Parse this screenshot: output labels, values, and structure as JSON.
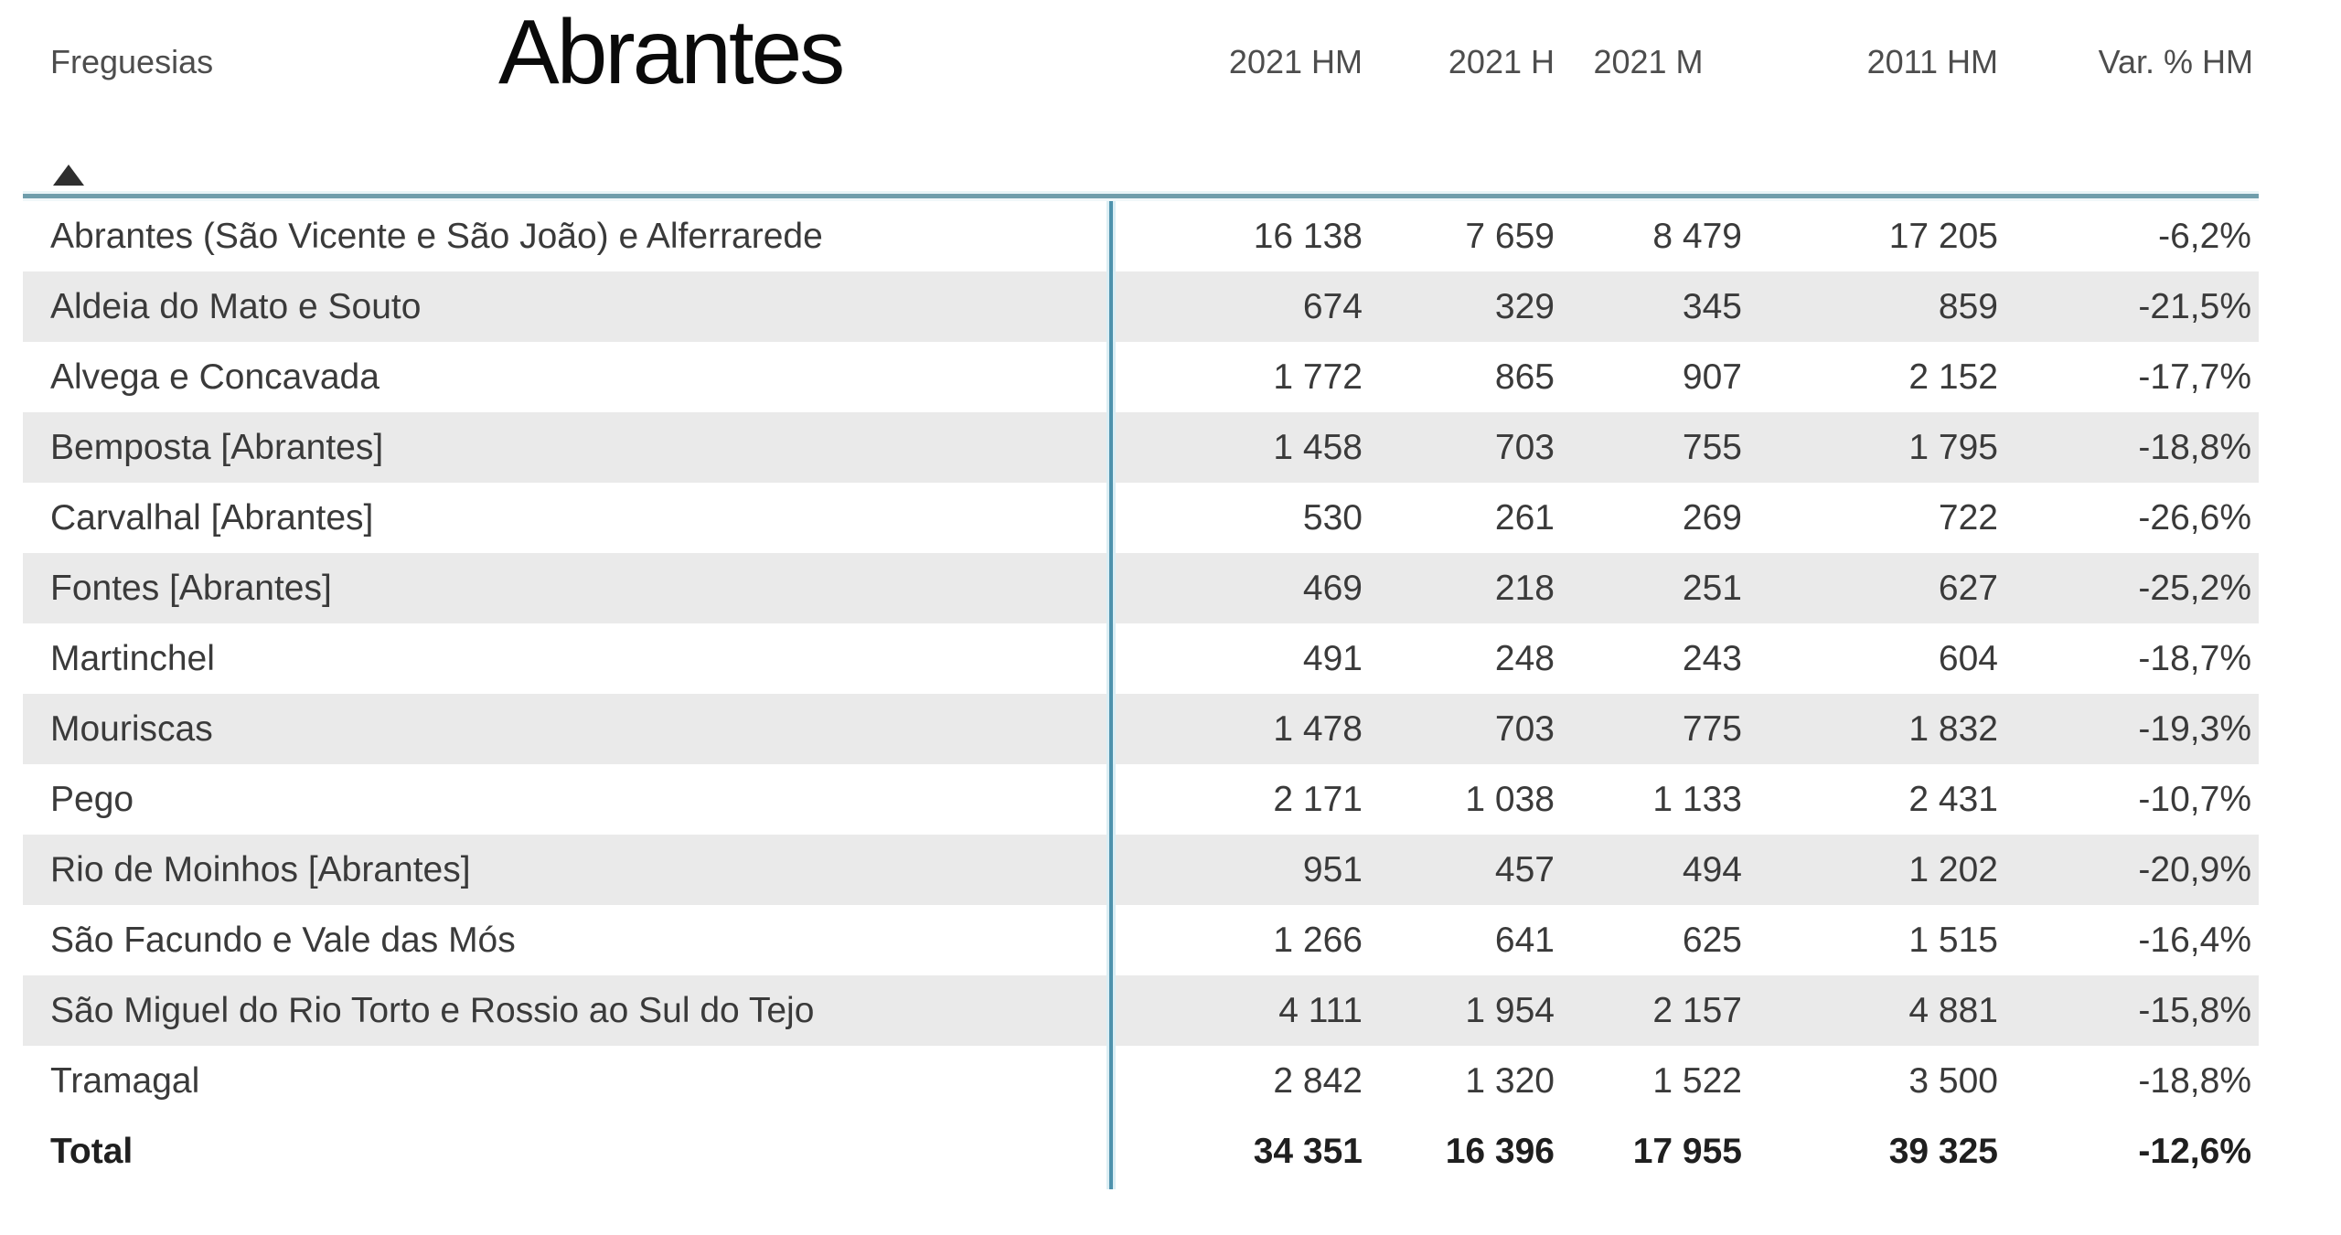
{
  "chart_data": {
    "type": "table",
    "title": "Abrantes",
    "row_header": "Freguesias",
    "columns": [
      "2021 HM",
      "2021 H",
      "2021 M",
      "2011 HM",
      "Var. % HM"
    ],
    "sort": {
      "column": "Freguesias",
      "direction": "ascending"
    },
    "rows": [
      {
        "name": "Abrantes (São Vicente e São João) e Alferrarede",
        "values": [
          "16 138",
          "7 659",
          "8 479",
          "17 205",
          "-6,2%"
        ]
      },
      {
        "name": "Aldeia do Mato e Souto",
        "values": [
          "674",
          "329",
          "345",
          "859",
          "-21,5%"
        ]
      },
      {
        "name": "Alvega e Concavada",
        "values": [
          "1 772",
          "865",
          "907",
          "2 152",
          "-17,7%"
        ]
      },
      {
        "name": "Bemposta [Abrantes]",
        "values": [
          "1 458",
          "703",
          "755",
          "1 795",
          "-18,8%"
        ]
      },
      {
        "name": "Carvalhal [Abrantes]",
        "values": [
          "530",
          "261",
          "269",
          "722",
          "-26,6%"
        ]
      },
      {
        "name": "Fontes [Abrantes]",
        "values": [
          "469",
          "218",
          "251",
          "627",
          "-25,2%"
        ]
      },
      {
        "name": "Martinchel",
        "values": [
          "491",
          "248",
          "243",
          "604",
          "-18,7%"
        ]
      },
      {
        "name": "Mouriscas",
        "values": [
          "1 478",
          "703",
          "775",
          "1 832",
          "-19,3%"
        ]
      },
      {
        "name": "Pego",
        "values": [
          "2 171",
          "1 038",
          "1 133",
          "2 431",
          "-10,7%"
        ]
      },
      {
        "name": "Rio de Moinhos [Abrantes]",
        "values": [
          "951",
          "457",
          "494",
          "1 202",
          "-20,9%"
        ]
      },
      {
        "name": "São Facundo e Vale das Mós",
        "values": [
          "1 266",
          "641",
          "625",
          "1 515",
          "-16,4%"
        ]
      },
      {
        "name": "São Miguel do Rio Torto e Rossio ao Sul do Tejo",
        "values": [
          "4 111",
          "1 954",
          "2 157",
          "4 881",
          "-15,8%"
        ]
      },
      {
        "name": "Tramagal",
        "values": [
          "2 842",
          "1 320",
          "1 522",
          "3 500",
          "-18,8%"
        ]
      }
    ],
    "total": {
      "name": "Total",
      "values": [
        "34 351",
        "16 396",
        "17 955",
        "39 325",
        "-12,6%"
      ]
    },
    "colors": {
      "separator_teal": "#4e92ad",
      "stripe_gray": "#eaeaea",
      "text": "#3a3a3a"
    }
  }
}
